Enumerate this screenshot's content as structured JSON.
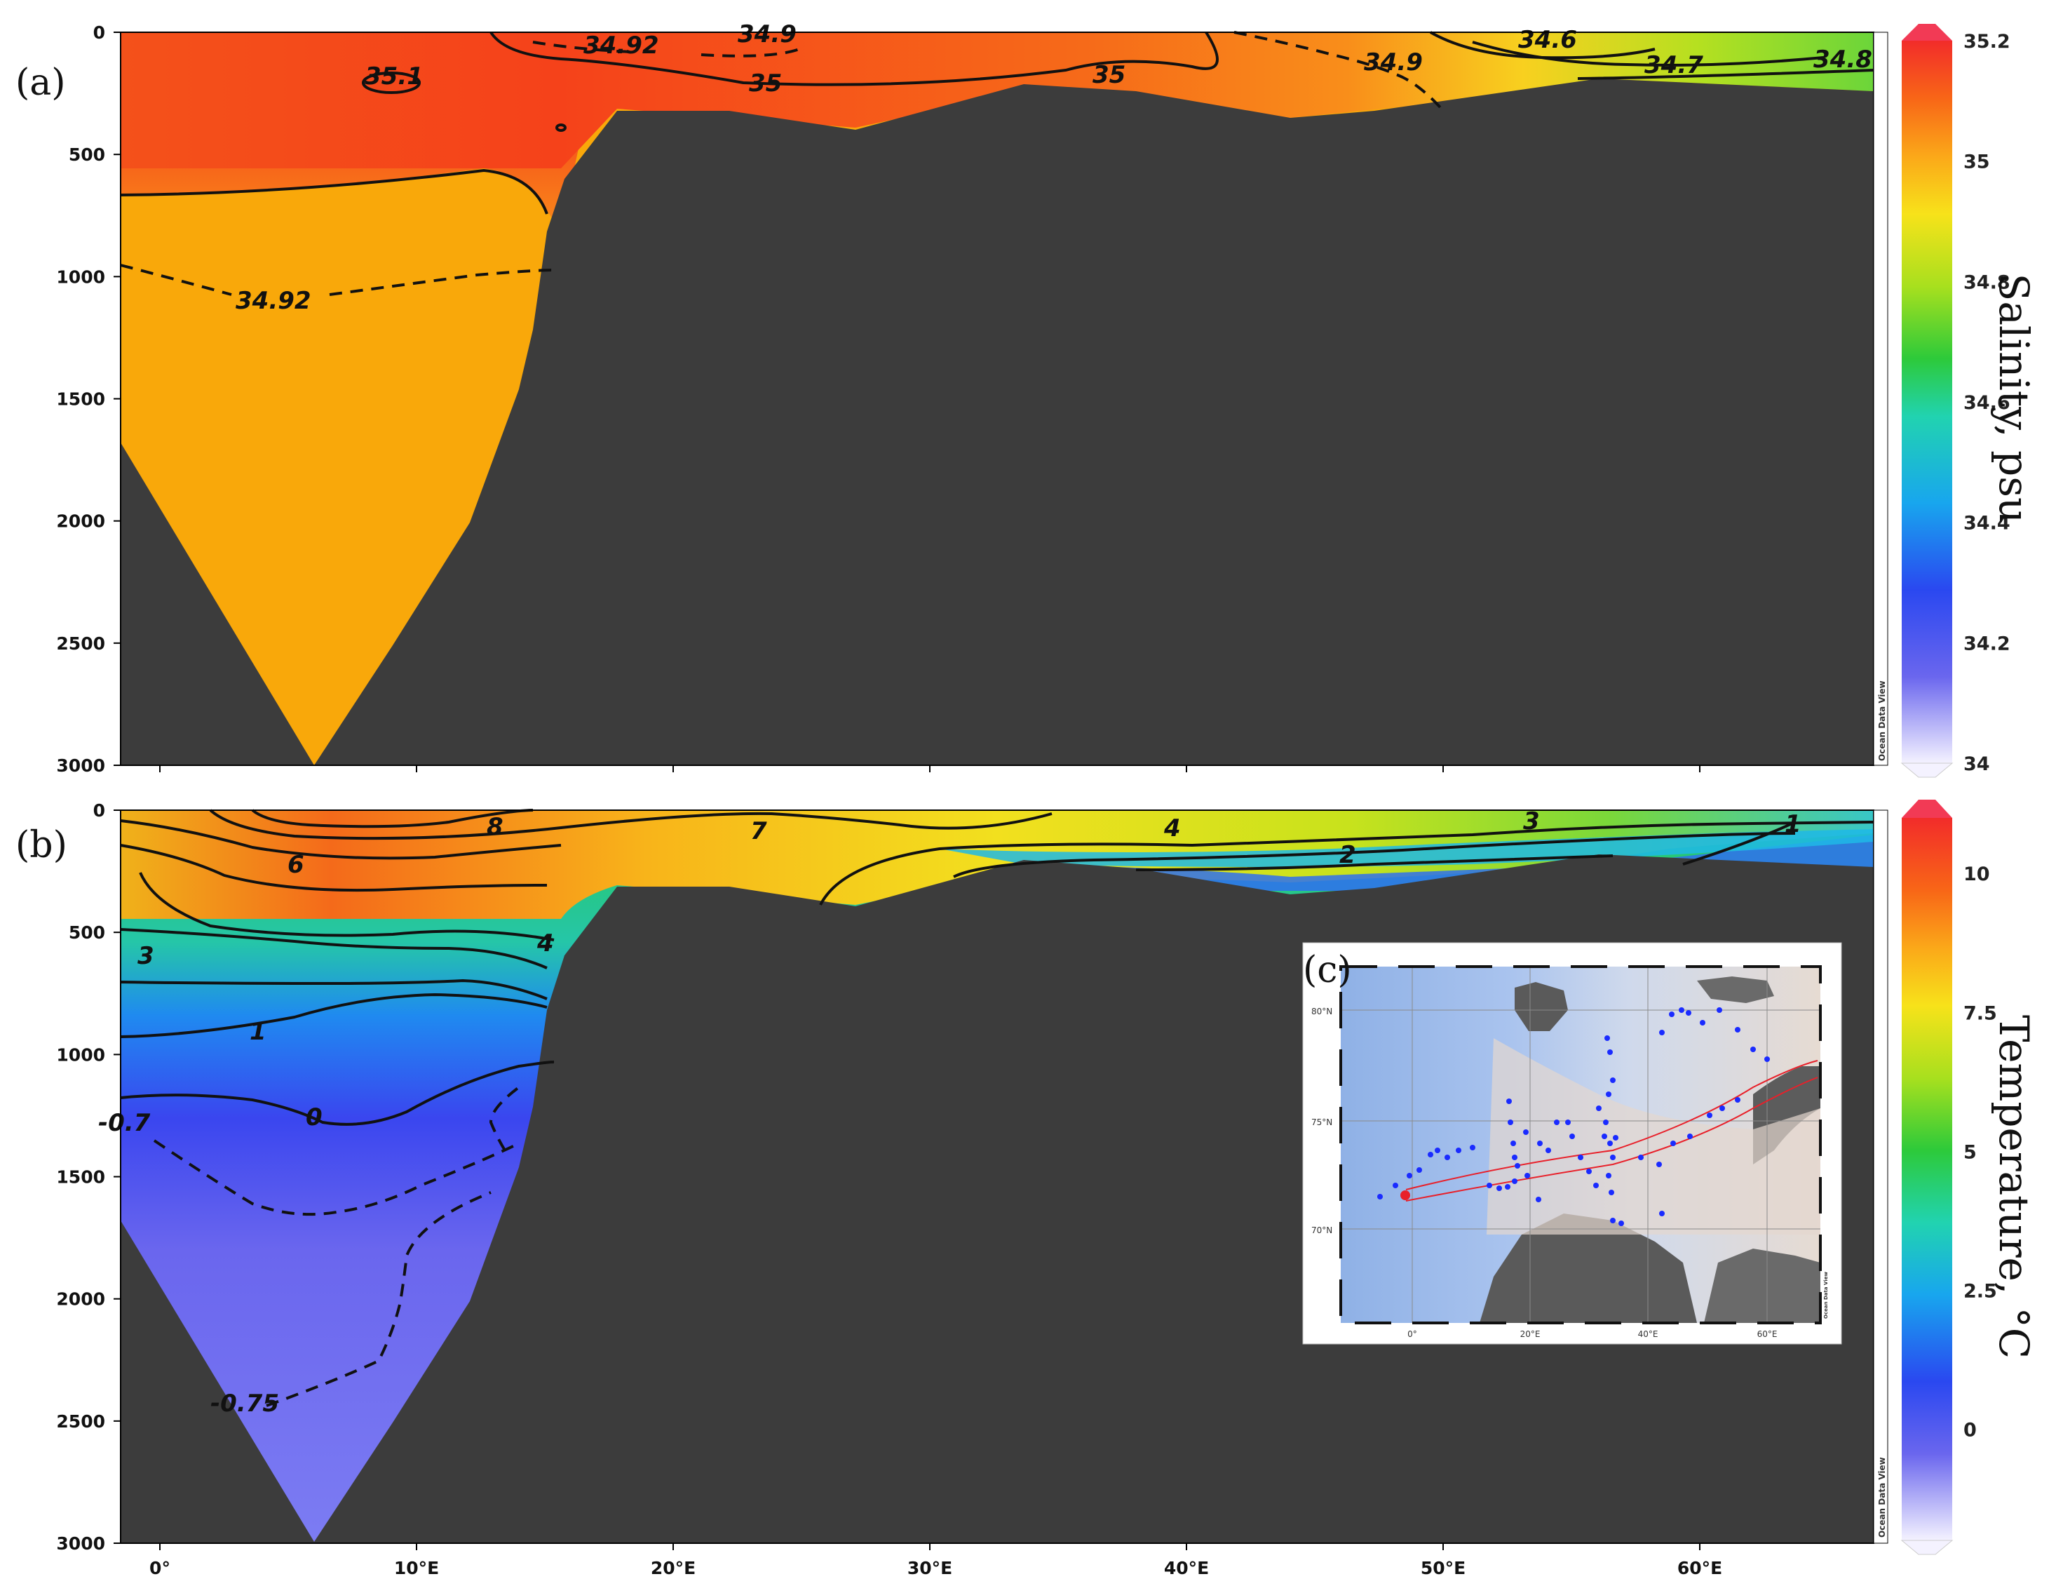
{
  "chart_data": [
    {
      "panel": "(a)",
      "type": "heatmap",
      "x_ticks": [
        "0°",
        "10°E",
        "20°E",
        "30°E",
        "40°E",
        "50°E",
        "60°E"
      ],
      "y_ticks": [
        "0",
        "500",
        "1000",
        "1500",
        "2000",
        "2500",
        "3000"
      ],
      "ylim": [
        3000,
        0
      ],
      "colorbar": {
        "title": "Salinity, psu",
        "ticks": [
          "35.2",
          "35",
          "34.8",
          "34.6",
          "34.4",
          "34.2",
          "34"
        ],
        "range": [
          34,
          35.2
        ]
      },
      "contour_labels": [
        "35.1",
        "34.92",
        "34.9",
        "35",
        "35",
        "34.9",
        "34.6",
        "34.7",
        "34.8",
        "34.92"
      ],
      "watermark": "Ocean Data View"
    },
    {
      "panel": "(b)",
      "type": "heatmap",
      "x_ticks": [
        "0°",
        "10°E",
        "20°E",
        "30°E",
        "40°E",
        "50°E",
        "60°E"
      ],
      "y_ticks": [
        "0",
        "500",
        "1000",
        "1500",
        "2000",
        "2500",
        "3000"
      ],
      "ylim": [
        3000,
        0
      ],
      "colorbar": {
        "title": "Temperature, °C",
        "ticks": [
          "10",
          "7.5",
          "5",
          "2.5",
          "0"
        ],
        "range": [
          -2,
          11
        ]
      },
      "contour_labels": [
        "8",
        "7",
        "6",
        "4",
        "3",
        "2",
        "1",
        "3",
        "4",
        "1",
        "0",
        "-0.7",
        "-0.75"
      ],
      "watermark": "Ocean Data View"
    },
    {
      "panel": "(c)",
      "type": "scatter",
      "lat_ticks": [
        "80°N",
        "75°N",
        "70°N"
      ],
      "lon_ticks": [
        "0°",
        "20°E",
        "40°E",
        "60°E"
      ],
      "stations": {
        "count": 60,
        "color": "#1a2bff"
      },
      "start_point_color": "#e8202a",
      "watermark": "Ocean Data View"
    }
  ],
  "colors": {
    "topography": "#3c3c3c",
    "background": "#ffffff",
    "salinity_deep": "#f9a80a",
    "temperature_deep": "#7c7cf3"
  }
}
